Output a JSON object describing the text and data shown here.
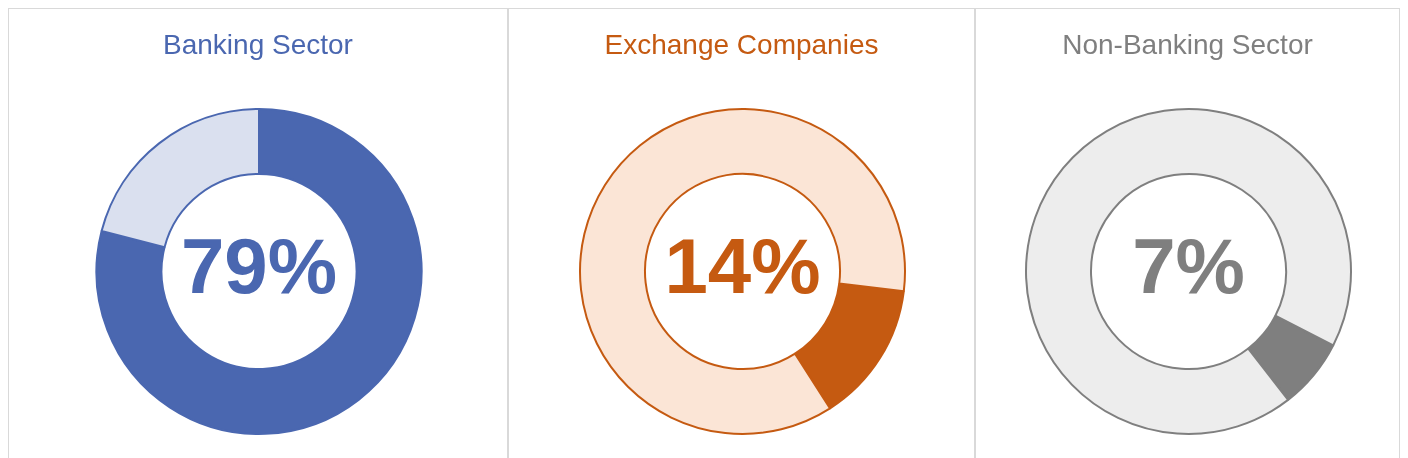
{
  "chart_data": [
    {
      "type": "donut",
      "title": "Banking Sector",
      "categories": [
        null,
        null
      ],
      "values": [
        79,
        21
      ],
      "colors": [
        "#4a67b0",
        "#dae0ef"
      ],
      "annotations": [
        "79%"
      ],
      "legend": false
    },
    {
      "type": "donut",
      "title": "Exchange Companies",
      "categories": [
        null,
        null
      ],
      "values": [
        14,
        86
      ],
      "colors": [
        "#c55a11",
        "#fbe5d6"
      ],
      "annotations": [
        "14%"
      ],
      "legend": false
    },
    {
      "type": "donut",
      "title": "Non-Banking Sector",
      "categories": [
        null,
        null
      ],
      "values": [
        7,
        93
      ],
      "colors": [
        "#7f7f7f",
        "#ededed"
      ],
      "annotations": [
        "7%"
      ],
      "legend": false
    }
  ]
}
